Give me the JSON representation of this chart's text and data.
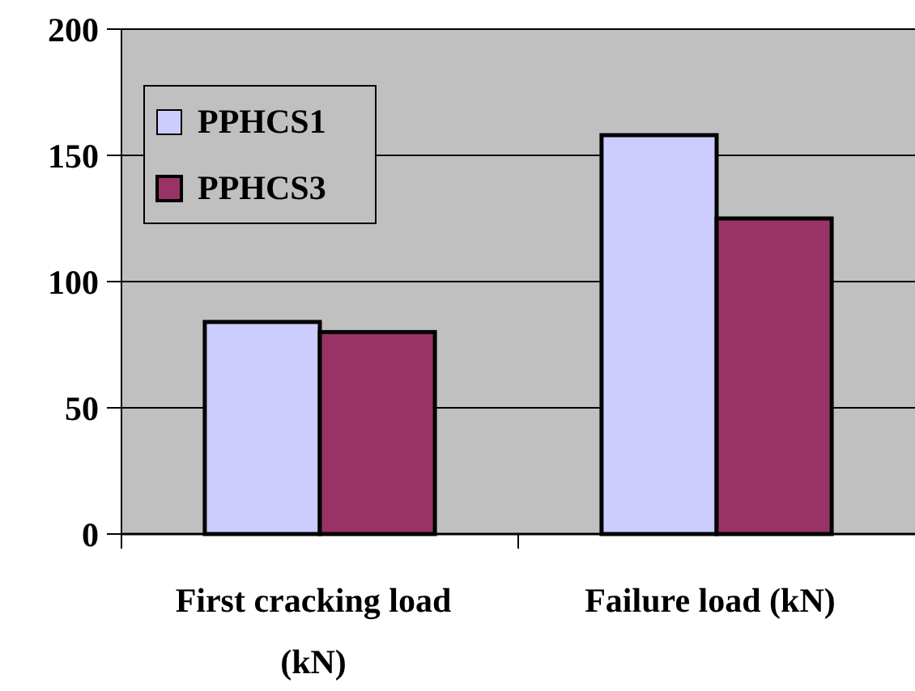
{
  "chart_data": {
    "type": "bar",
    "categories": [
      "First cracking load (kN)",
      "Failure load (kN)"
    ],
    "series": [
      {
        "name": "PPHCS1",
        "color": "#ccccff",
        "values": [
          84,
          158
        ]
      },
      {
        "name": "PPHCS3",
        "color": "#993366",
        "values": [
          80,
          125
        ]
      }
    ],
    "ylim": [
      0,
      200
    ],
    "yticks": [
      0,
      50,
      100,
      150,
      200
    ],
    "grid": "y",
    "legend": "top left"
  }
}
